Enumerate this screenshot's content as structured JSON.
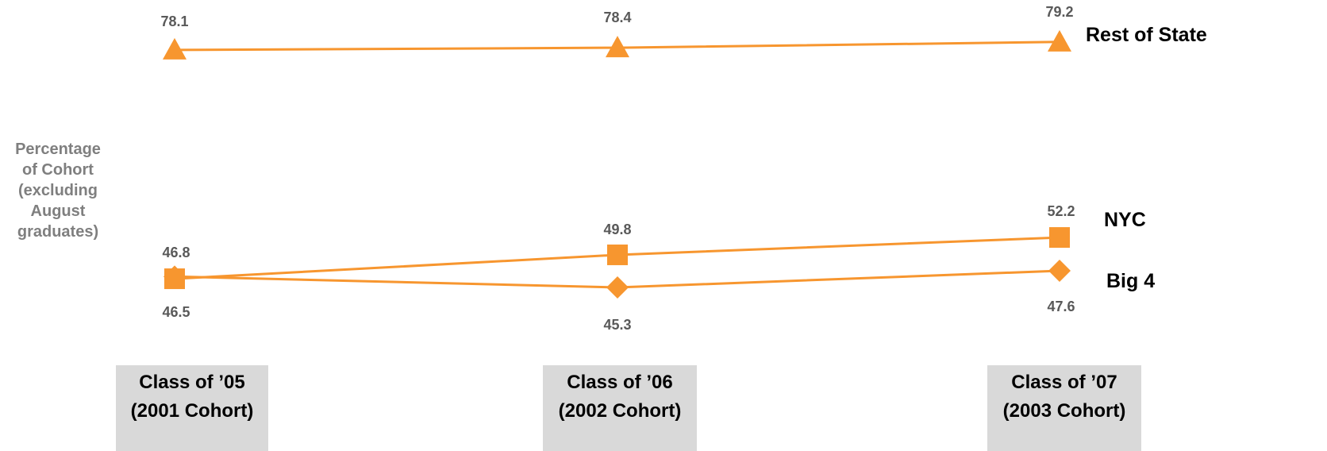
{
  "chart_data": {
    "type": "line",
    "ylabel": [
      "Percentage",
      "of Cohort",
      "(excluding",
      "August",
      "graduates)"
    ],
    "categories": [
      [
        "Class of ’05",
        "(2001 Cohort)"
      ],
      [
        "Class of ’06",
        "(2002 Cohort)"
      ],
      [
        "Class of ’07",
        "(2003 Cohort)"
      ]
    ],
    "series": [
      {
        "name": "Rest of State",
        "marker": "triangle",
        "values": [
          78.1,
          78.4,
          79.2
        ]
      },
      {
        "name": "NYC",
        "marker": "square",
        "values": [
          46.5,
          49.8,
          52.2
        ]
      },
      {
        "name": "Big 4",
        "marker": "diamond",
        "values": [
          46.8,
          45.3,
          47.6
        ]
      }
    ],
    "colors": {
      "series": "#f7962f",
      "data_label": "#595959",
      "series_label": "#000000",
      "axis_label": "#7f7f7f",
      "category_box": "#d9d9d9"
    }
  }
}
